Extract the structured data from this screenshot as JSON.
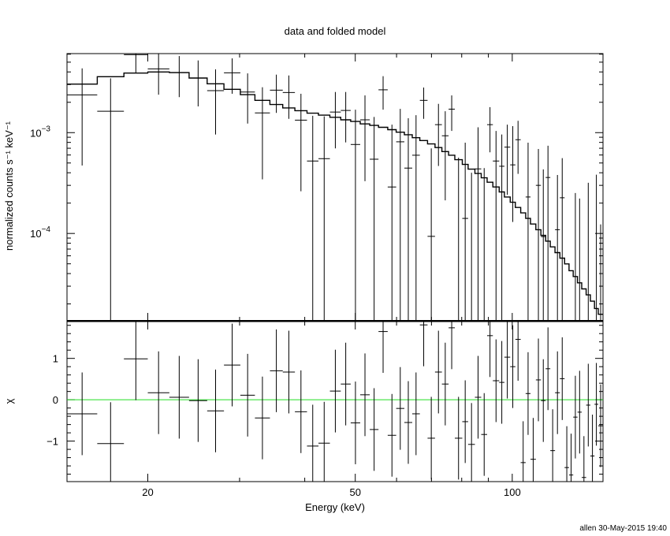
{
  "title": "data and folded model",
  "footer": "allen 30-May-2015 19:40",
  "colors": {
    "data": "#000000",
    "model": "#000000",
    "zero_line": "#22dd22"
  },
  "chart_data": [
    {
      "type": "line",
      "panel": "top",
      "ylabel": "normalized counts s⁻¹ keV⁻¹",
      "x_scale": "log",
      "y_scale": "log",
      "xlim": [
        14.0,
        149.3
      ],
      "ylim": [
        1.36e-05,
        0.00608
      ],
      "y_ticks": [
        {
          "value": 0.001,
          "base": "10",
          "exp": "−3"
        },
        {
          "value": 0.0001,
          "base": "10",
          "exp": "−4"
        }
      ],
      "grid": false,
      "bin_edges_keV": [
        14.0,
        16.0,
        18.0,
        20.0,
        22.0,
        24.0,
        26.0,
        28.0,
        30.1,
        32.1,
        34.3,
        36.3,
        38.3,
        40.4,
        42.5,
        44.7,
        46.9,
        49.0,
        51.1,
        53.3,
        55.4,
        57.7,
        59.9,
        62.1,
        64.3,
        66.5,
        68.8,
        71.1,
        73.3,
        75.5,
        77.6,
        80.2,
        82.3,
        84.8,
        87.2,
        89.5,
        91.8,
        94.4,
        96.6,
        99.1,
        101.4,
        103.8,
        106.1,
        108.4,
        111.0,
        113.5,
        115.9,
        118.3,
        120.8,
        123.4,
        126.0,
        128.5,
        130.9,
        133.4,
        135.9,
        138.6,
        141.2,
        143.8,
        146.2,
        149.3
      ],
      "data": {
        "y": [
          0.00237,
          0.00163,
          0.00593,
          0.00429,
          0.00394,
          0.00348,
          0.00261,
          0.00392,
          0.00253,
          0.00157,
          0.00264,
          0.0025,
          0.00133,
          0.000523,
          0.000552,
          0.0016,
          0.00166,
          0.000763,
          0.00134,
          0.000545,
          0.00266,
          0.000289,
          0.000811,
          0.000445,
          0.000597,
          0.00209,
          9.36e-05,
          0.0012,
          0.000931,
          0.00171,
          null,
          0.000141,
          null,
          0.000437,
          null,
          0.0012,
          0.000523,
          0.000464,
          0.000718,
          0.000479,
          0.000851,
          null,
          0.00023,
          null,
          0.0003,
          9.31e-05,
          0.000359,
          null,
          0.000109,
          0.000226,
          null,
          null,
          null,
          null,
          null,
          null,
          null,
          null,
          null
        ],
        "y_hi": [
          0.00434,
          0.00346,
          0.009,
          0.00604,
          0.00575,
          0.0052,
          0.00424,
          0.00545,
          0.00387,
          0.00282,
          0.00376,
          0.00369,
          0.00243,
          0.00147,
          0.00145,
          0.00253,
          0.00253,
          0.00169,
          0.00234,
          0.00143,
          0.00363,
          0.0012,
          0.00172,
          0.00139,
          0.00149,
          0.0028,
          0.000698,
          0.00193,
          0.00163,
          0.00234,
          0.000565,
          0.000796,
          0.0004,
          0.00113,
          0.000445,
          0.00179,
          0.00104,
          0.000958,
          0.0012,
          0.00116,
          0.00131,
          null,
          0.000796,
          null,
          0.000689,
          0.000432,
          0.000741,
          null,
          0.00038,
          0.000558,
          null,
          null,
          0.000252,
          0.000222,
          null,
          0.000318,
          null,
          0.000383,
          0.000123
        ],
        "y_lo": [
          0.000472,
          null,
          0.0039,
          0.00238,
          0.00225,
          0.00182,
          0.000958,
          0.00243,
          0.00123,
          0.000344,
          0.00157,
          0.00137,
          0.000262,
          null,
          null,
          0.000698,
          0.0008,
          null,
          0.00033,
          null,
          0.00169,
          null,
          null,
          null,
          null,
          0.00137,
          null,
          0.000467,
          0.000213,
          0.00104,
          null,
          null,
          null,
          null,
          null,
          0.000638,
          null,
          null,
          0.000242,
          0.00013,
          0.00039,
          null,
          null,
          null,
          null,
          null,
          null,
          null,
          null,
          null,
          null,
          null,
          null,
          null,
          null,
          null,
          null,
          null,
          null
        ]
      },
      "model": [
        0.00303,
        0.00359,
        0.0039,
        0.004,
        0.00394,
        0.00348,
        0.00305,
        0.00269,
        0.00238,
        0.00209,
        0.0019,
        0.00176,
        0.00165,
        0.00156,
        0.00149,
        0.00142,
        0.00134,
        0.00129,
        0.00122,
        0.00118,
        0.00113,
        0.00107,
        0.00101,
        0.000953,
        0.000891,
        0.000835,
        0.000772,
        0.000711,
        0.000649,
        0.000597,
        0.000539,
        0.000484,
        0.000434,
        0.000393,
        0.000356,
        0.000322,
        0.000289,
        0.000258,
        0.00023,
        0.000204,
        0.000181,
        0.00016,
        0.000141,
        0.000124,
        0.000109,
        9.58e-05,
        8.39e-05,
        7.36e-05,
        6.45e-05,
        5.69e-05,
        4.99e-05,
        4.27e-05,
        3.74e-05,
        3.24e-05,
        2.82e-05,
        2.46e-05,
        2.13e-05,
        1.8e-05,
        1.58e-05
      ]
    },
    {
      "type": "scatter",
      "panel": "bottom",
      "ylabel": "χ",
      "xlabel": "Energy (keV)",
      "x_scale": "log",
      "xlim": [
        14.0,
        149.3
      ],
      "ylim": [
        -1.98,
        1.89
      ],
      "x_ticks": [
        {
          "value": 20,
          "label": "20"
        },
        {
          "value": 50,
          "label": "50"
        },
        {
          "value": 100,
          "label": "100"
        }
      ],
      "y_ticks": [
        {
          "value": 1,
          "label": "1"
        },
        {
          "value": 0,
          "label": "0"
        },
        {
          "value": -1,
          "label": "−1"
        }
      ],
      "reference_line": 0,
      "chi": [
        -0.34,
        -1.06,
        0.99,
        0.17,
        0.06,
        -0.02,
        -0.27,
        0.84,
        0.11,
        -0.44,
        0.7,
        0.67,
        -0.29,
        -1.12,
        -1.05,
        0.21,
        0.38,
        -0.56,
        0.12,
        -0.72,
        1.65,
        -0.86,
        -0.21,
        -0.55,
        -0.34,
        1.81,
        -0.93,
        0.67,
        0.38,
        1.74,
        -0.93,
        -0.53,
        -1.08,
        0.06,
        -0.84,
        1.55,
        0.46,
        0.42,
        1.03,
        0.8,
        1.46,
        -1.52,
        0.15,
        -1.44,
        0.48,
        -0.02,
        0.75,
        -1.23,
        0.17,
        0.51,
        -1.64,
        -1.82,
        -0.42,
        -0.3,
        -1.88,
        -0.13,
        -1.36,
        -0.11,
        -0.63
      ],
      "chi_err": 1
    }
  ]
}
